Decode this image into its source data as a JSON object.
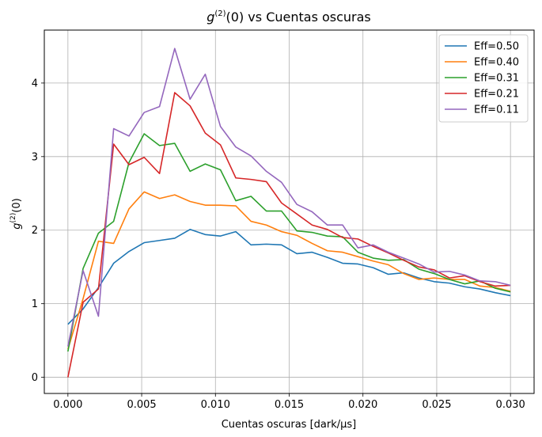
{
  "chart_data": {
    "type": "line",
    "title": "g(2)(0) vs Cuentas oscuras",
    "title_parts": {
      "prefix": "g",
      "sup": "(2)",
      "suffix": "(0) vs Cuentas oscuras"
    },
    "xlabel": "Cuentas oscuras [dark/µs]",
    "ylabel": "g(2)(0)",
    "ylabel_parts": {
      "prefix": "g",
      "sup": "(2)",
      "suffix": "(0)"
    },
    "xlim": [
      -0.0016,
      0.0316
    ],
    "ylim": [
      -0.22,
      4.72
    ],
    "xticks": [
      0.0,
      0.005,
      0.01,
      0.015,
      0.02,
      0.025,
      0.03
    ],
    "xtick_labels": [
      "0.000",
      "0.005",
      "0.010",
      "0.015",
      "0.020",
      "0.025",
      "0.030"
    ],
    "yticks": [
      0,
      1,
      2,
      3,
      4
    ],
    "ytick_labels": [
      "0",
      "1",
      "2",
      "3",
      "4"
    ],
    "grid": true,
    "legend_position": "top-right",
    "x": [
      0.0,
      0.00103,
      0.00207,
      0.0031,
      0.00414,
      0.00517,
      0.00621,
      0.00724,
      0.00828,
      0.00931,
      0.01034,
      0.01138,
      0.01241,
      0.01345,
      0.01448,
      0.01552,
      0.01655,
      0.01759,
      0.01862,
      0.01966,
      0.02069,
      0.02172,
      0.02276,
      0.02379,
      0.02483,
      0.02586,
      0.0269,
      0.02793,
      0.02897,
      0.03
    ],
    "series": [
      {
        "name": "Eff=0.50",
        "color": "#1f77b4",
        "values": [
          0.72,
          0.93,
          1.22,
          1.55,
          1.71,
          1.83,
          1.86,
          1.89,
          2.01,
          1.94,
          1.92,
          1.98,
          1.8,
          1.81,
          1.8,
          1.68,
          1.7,
          1.63,
          1.55,
          1.54,
          1.49,
          1.4,
          1.42,
          1.35,
          1.3,
          1.28,
          1.23,
          1.2,
          1.15,
          1.11
        ]
      },
      {
        "name": "Eff=0.40",
        "color": "#ff7f0e",
        "values": [
          0.38,
          1.07,
          1.85,
          1.82,
          2.29,
          2.52,
          2.43,
          2.48,
          2.39,
          2.34,
          2.34,
          2.33,
          2.12,
          2.07,
          1.98,
          1.93,
          1.82,
          1.72,
          1.7,
          1.64,
          1.58,
          1.53,
          1.41,
          1.33,
          1.35,
          1.33,
          1.33,
          1.24,
          1.22,
          1.17
        ]
      },
      {
        "name": "Eff=0.31",
        "color": "#2ca02c",
        "values": [
          0.35,
          1.48,
          1.96,
          2.12,
          2.92,
          3.31,
          3.15,
          3.18,
          2.8,
          2.9,
          2.82,
          2.4,
          2.46,
          2.26,
          2.26,
          1.99,
          1.97,
          1.92,
          1.91,
          1.7,
          1.62,
          1.59,
          1.6,
          1.47,
          1.41,
          1.33,
          1.27,
          1.31,
          1.21,
          1.16
        ]
      },
      {
        "name": "Eff=0.21",
        "color": "#d62728",
        "values": [
          0.0,
          1.02,
          1.2,
          3.17,
          2.89,
          2.99,
          2.77,
          3.87,
          3.69,
          3.32,
          3.16,
          2.71,
          2.69,
          2.66,
          2.37,
          2.22,
          2.07,
          2.01,
          1.9,
          1.88,
          1.78,
          1.69,
          1.59,
          1.5,
          1.46,
          1.35,
          1.38,
          1.3,
          1.24,
          1.25
        ]
      },
      {
        "name": "Eff=0.11",
        "color": "#9467bd",
        "values": [
          0.42,
          1.45,
          0.83,
          3.38,
          3.28,
          3.6,
          3.68,
          4.47,
          3.78,
          4.12,
          3.41,
          3.13,
          3.01,
          2.8,
          2.65,
          2.35,
          2.25,
          2.07,
          2.07,
          1.76,
          1.8,
          1.7,
          1.62,
          1.54,
          1.43,
          1.44,
          1.39,
          1.31,
          1.3,
          1.25
        ]
      }
    ]
  }
}
